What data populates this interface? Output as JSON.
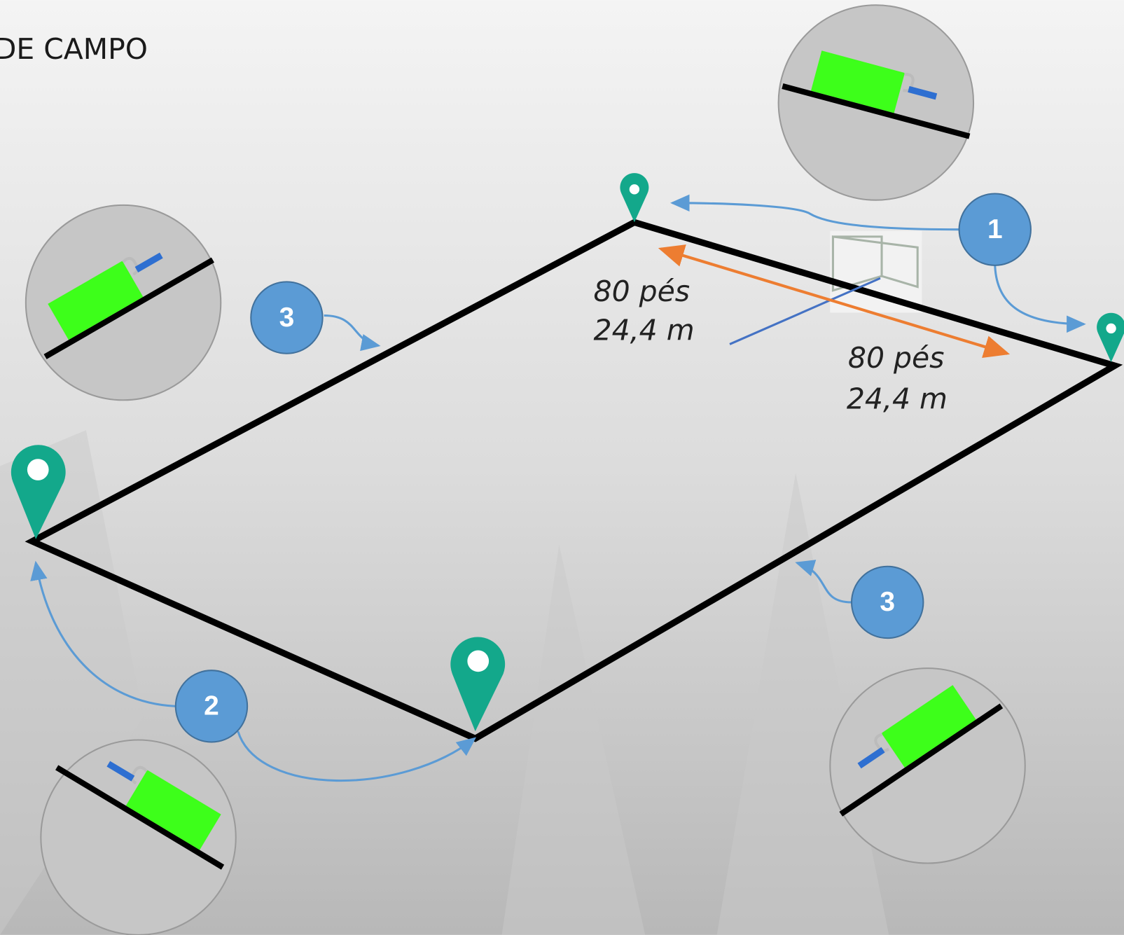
{
  "header": {
    "title": "DE CAMPO"
  },
  "steps": [
    "1",
    "3",
    "3",
    "2"
  ],
  "dimensions": [
    {
      "feet": "80 pés",
      "meters": "24,4 m"
    },
    {
      "feet": "80 pés",
      "meters": "24,4 m"
    }
  ]
}
